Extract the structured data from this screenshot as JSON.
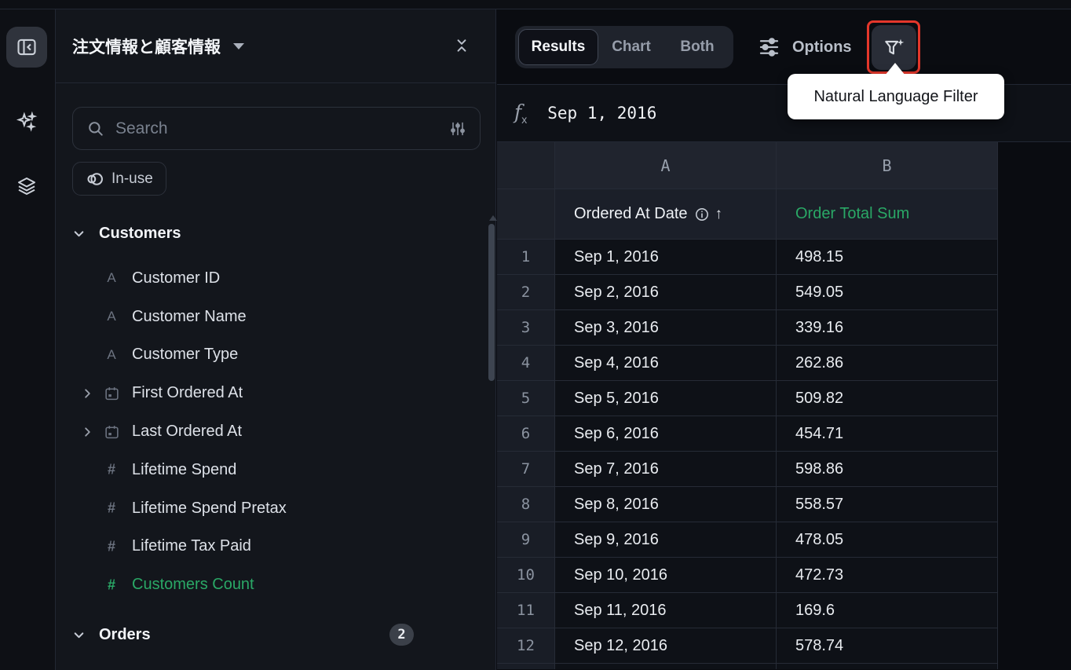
{
  "sidebar": {
    "title": "注文情報と顧客情報",
    "search": {
      "placeholder": "Search"
    },
    "in_use_label": "In-use",
    "sections": [
      {
        "label": "Customers",
        "badge": null,
        "fields": [
          {
            "label": "Customer ID",
            "type": "text",
            "expandable": false,
            "highlight": null
          },
          {
            "label": "Customer Name",
            "type": "text",
            "expandable": false,
            "highlight": null
          },
          {
            "label": "Customer Type",
            "type": "text",
            "expandable": false,
            "highlight": null
          },
          {
            "label": "First Ordered At",
            "type": "date",
            "expandable": true,
            "highlight": null
          },
          {
            "label": "Last Ordered At",
            "type": "date",
            "expandable": true,
            "highlight": null
          },
          {
            "label": "Lifetime Spend",
            "type": "number",
            "expandable": false,
            "highlight": null
          },
          {
            "label": "Lifetime Spend Pretax",
            "type": "number",
            "expandable": false,
            "highlight": null
          },
          {
            "label": "Lifetime Tax Paid",
            "type": "number",
            "expandable": false,
            "highlight": null
          },
          {
            "label": "Customers Count",
            "type": "number",
            "expandable": false,
            "highlight": "green"
          }
        ]
      },
      {
        "label": "Orders",
        "badge": "2",
        "fields": []
      }
    ]
  },
  "toolbar": {
    "tabs": [
      {
        "label": "Results",
        "active": true
      },
      {
        "label": "Chart",
        "active": false
      },
      {
        "label": "Both",
        "active": false
      }
    ],
    "options_label": "Options",
    "nl_filter_tooltip": "Natural Language Filter"
  },
  "formula_bar": {
    "value": "Sep 1, 2016"
  },
  "table": {
    "column_letters": [
      "A",
      "B"
    ],
    "columns": [
      {
        "name": "Ordered At Date",
        "info": true,
        "sort": "asc"
      },
      {
        "name": "Order Total Sum",
        "highlight": "green"
      }
    ],
    "rows": [
      {
        "n": "1",
        "cells": [
          "Sep 1, 2016",
          "498.15"
        ]
      },
      {
        "n": "2",
        "cells": [
          "Sep 2, 2016",
          "549.05"
        ]
      },
      {
        "n": "3",
        "cells": [
          "Sep 3, 2016",
          "339.16"
        ]
      },
      {
        "n": "4",
        "cells": [
          "Sep 4, 2016",
          "262.86"
        ]
      },
      {
        "n": "5",
        "cells": [
          "Sep 5, 2016",
          "509.82"
        ]
      },
      {
        "n": "6",
        "cells": [
          "Sep 6, 2016",
          "454.71"
        ]
      },
      {
        "n": "7",
        "cells": [
          "Sep 7, 2016",
          "598.86"
        ]
      },
      {
        "n": "8",
        "cells": [
          "Sep 8, 2016",
          "558.57"
        ]
      },
      {
        "n": "9",
        "cells": [
          "Sep 9, 2016",
          "478.05"
        ]
      },
      {
        "n": "10",
        "cells": [
          "Sep 10, 2016",
          "472.73"
        ]
      },
      {
        "n": "11",
        "cells": [
          "Sep 11, 2016",
          "169.6"
        ]
      },
      {
        "n": "12",
        "cells": [
          "Sep 12, 2016",
          "578.74"
        ]
      }
    ]
  },
  "colors": {
    "green": "#2aa866",
    "annotation_red": "#e5372b"
  }
}
